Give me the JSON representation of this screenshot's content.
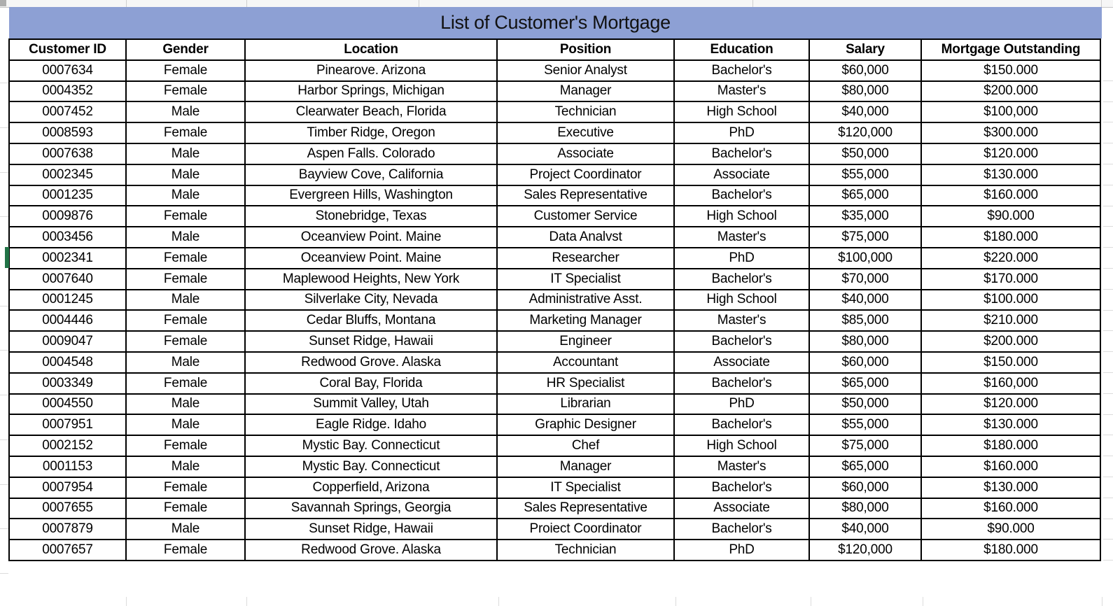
{
  "sheet": {
    "title": "List of Customer's Mortgage",
    "title_bg": "#8da0d4",
    "selection_color": "#217346",
    "grid_color": "#dcdcdc",
    "border_color": "#000000"
  },
  "table": {
    "headers": [
      "Customer ID",
      "Gender",
      "Location",
      "Position",
      "Education",
      "Salary",
      "Mortgage Outstanding"
    ],
    "selected_row_customer_id": "0002341",
    "rows": [
      {
        "customer_id": "0007634",
        "gender": "Female",
        "location": "Pinearove. Arizona",
        "position": "Senior Analyst",
        "education": "Bachelor's",
        "salary": "$60,000",
        "mortgage_outstanding": "$150.000"
      },
      {
        "customer_id": "0004352",
        "gender": "Female",
        "location": "Harbor Springs, Michigan",
        "position": "Manager",
        "education": "Master's",
        "salary": "$80,000",
        "mortgage_outstanding": "$200.000"
      },
      {
        "customer_id": "0007452",
        "gender": "Male",
        "location": "Clearwater Beach, Florida",
        "position": "Technician",
        "education": "High School",
        "salary": "$40,000",
        "mortgage_outstanding": "$100,000"
      },
      {
        "customer_id": "0008593",
        "gender": "Female",
        "location": "Timber Ridge, Oregon",
        "position": "Executive",
        "education": "PhD",
        "salary": "$120,000",
        "mortgage_outstanding": "$300.000"
      },
      {
        "customer_id": "0007638",
        "gender": "Male",
        "location": "Aspen Falls. Colorado",
        "position": "Associate",
        "education": "Bachelor's",
        "salary": "$50,000",
        "mortgage_outstanding": "$120.000"
      },
      {
        "customer_id": "0002345",
        "gender": "Male",
        "location": "Bayview Cove, California",
        "position": "Project Coordinator",
        "education": "Associate",
        "salary": "$55,000",
        "mortgage_outstanding": "$130.000"
      },
      {
        "customer_id": "0001235",
        "gender": "Male",
        "location": "Evergreen Hills, Washington",
        "position": "Sales Representative",
        "education": "Bachelor's",
        "salary": "$65,000",
        "mortgage_outstanding": "$160.000"
      },
      {
        "customer_id": "0009876",
        "gender": "Female",
        "location": "Stonebridge, Texas",
        "position": "Customer Service",
        "education": "High School",
        "salary": "$35,000",
        "mortgage_outstanding": "$90.000"
      },
      {
        "customer_id": "0003456",
        "gender": "Male",
        "location": "Oceanview Point. Maine",
        "position": "Data Analvst",
        "education": "Master's",
        "salary": "$75,000",
        "mortgage_outstanding": "$180.000"
      },
      {
        "customer_id": "0002341",
        "gender": "Female",
        "location": "Oceanview Point. Maine",
        "position": "Researcher",
        "education": "PhD",
        "salary": "$100,000",
        "mortgage_outstanding": "$220.000"
      },
      {
        "customer_id": "0007640",
        "gender": "Female",
        "location": "Maplewood Heights, New York",
        "position": "IT Specialist",
        "education": "Bachelor's",
        "salary": "$70,000",
        "mortgage_outstanding": "$170.000"
      },
      {
        "customer_id": "0001245",
        "gender": "Male",
        "location": "Silverlake City, Nevada",
        "position": "Administrative Asst.",
        "education": "High School",
        "salary": "$40,000",
        "mortgage_outstanding": "$100.000"
      },
      {
        "customer_id": "0004446",
        "gender": "Female",
        "location": "Cedar Bluffs, Montana",
        "position": "Marketing Manager",
        "education": "Master's",
        "salary": "$85,000",
        "mortgage_outstanding": "$210.000"
      },
      {
        "customer_id": "0009047",
        "gender": "Female",
        "location": "Sunset Ridge, Hawaii",
        "position": "Engineer",
        "education": "Bachelor's",
        "salary": "$80,000",
        "mortgage_outstanding": "$200.000"
      },
      {
        "customer_id": "0004548",
        "gender": "Male",
        "location": "Redwood Grove. Alaska",
        "position": "Accountant",
        "education": "Associate",
        "salary": "$60,000",
        "mortgage_outstanding": "$150.000"
      },
      {
        "customer_id": "0003349",
        "gender": "Female",
        "location": "Coral Bay, Florida",
        "position": "HR Specialist",
        "education": "Bachelor's",
        "salary": "$65,000",
        "mortgage_outstanding": "$160,000"
      },
      {
        "customer_id": "0004550",
        "gender": "Male",
        "location": "Summit Valley, Utah",
        "position": "Librarian",
        "education": "PhD",
        "salary": "$50,000",
        "mortgage_outstanding": "$120.000"
      },
      {
        "customer_id": "0007951",
        "gender": "Male",
        "location": "Eagle Ridge. Idaho",
        "position": "Graphic Designer",
        "education": "Bachelor's",
        "salary": "$55,000",
        "mortgage_outstanding": "$130.000"
      },
      {
        "customer_id": "0002152",
        "gender": "Female",
        "location": "Mystic Bay. Connecticut",
        "position": "Chef",
        "education": "High School",
        "salary": "$75,000",
        "mortgage_outstanding": "$180.000"
      },
      {
        "customer_id": "0001153",
        "gender": "Male",
        "location": "Mystic Bay. Connecticut",
        "position": "Manager",
        "education": "Master's",
        "salary": "$65,000",
        "mortgage_outstanding": "$160.000"
      },
      {
        "customer_id": "0007954",
        "gender": "Female",
        "location": "Copperfield, Arizona",
        "position": "IT Specialist",
        "education": "Bachelor's",
        "salary": "$60,000",
        "mortgage_outstanding": "$130.000"
      },
      {
        "customer_id": "0007655",
        "gender": "Female",
        "location": "Savannah Springs, Georgia",
        "position": "Sales Representative",
        "education": "Associate",
        "salary": "$80,000",
        "mortgage_outstanding": "$160.000"
      },
      {
        "customer_id": "0007879",
        "gender": "Male",
        "location": "Sunset Ridge, Hawaii",
        "position": "Proiect Coordinator",
        "education": "Bachelor's",
        "salary": "$40,000",
        "mortgage_outstanding": "$90.000"
      },
      {
        "customer_id": "0007657",
        "gender": "Female",
        "location": "Redwood Grove. Alaska",
        "position": "Technician",
        "education": "PhD",
        "salary": "$120,000",
        "mortgage_outstanding": "$180.000"
      }
    ]
  }
}
